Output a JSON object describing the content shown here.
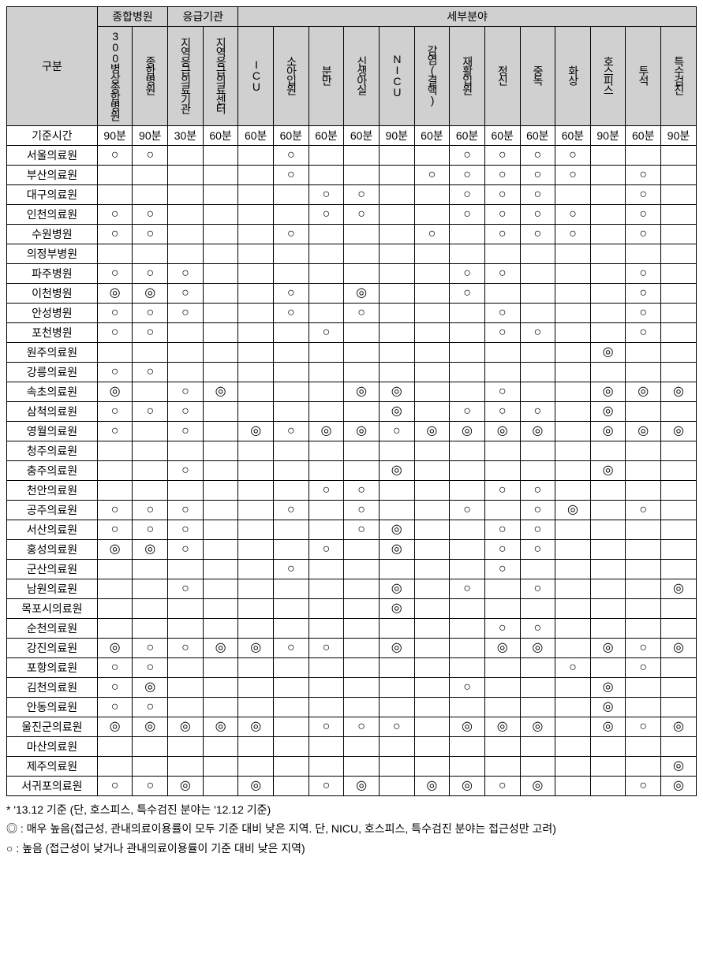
{
  "marks": {
    "high": "○",
    "veryhigh": "◎"
  },
  "headers": {
    "gubun": "구분",
    "group1": "종합병원",
    "group2": "응급기관",
    "group3": "세부분야",
    "c1": "300병상종합병원",
    "c2": "종합병원",
    "c3": "지역응급의료기관",
    "c4": "지역응급의료센터",
    "c5": "ICU",
    "c6": "소아입원",
    "c7": "분만",
    "c8": "신생아실",
    "c9": "NICU",
    "c10": "감염(결핵)",
    "c11": "재활입원",
    "c12": "정신",
    "c13": "중독",
    "c14": "화상",
    "c15": "호스피스",
    "c16": "투석",
    "c17": "특수검진",
    "baseTimeLabel": "기준시간",
    "baseTime": [
      "90분",
      "90분",
      "30분",
      "60분",
      "60분",
      "60분",
      "60분",
      "60분",
      "90분",
      "60분",
      "60분",
      "60분",
      "60분",
      "60분",
      "90분",
      "60분",
      "90분"
    ]
  },
  "rows": [
    {
      "n": "서울의료원",
      "v": [
        "h",
        "h",
        "",
        "",
        "",
        "h",
        "",
        "",
        "",
        "",
        "h",
        "h",
        "h",
        "h",
        "",
        "",
        ""
      ]
    },
    {
      "n": "부산의료원",
      "v": [
        "",
        "",
        "",
        "",
        "",
        "h",
        "",
        "",
        "",
        "h",
        "h",
        "h",
        "h",
        "h",
        "",
        "h",
        ""
      ]
    },
    {
      "n": "대구의료원",
      "v": [
        "",
        "",
        "",
        "",
        "",
        "",
        "h",
        "h",
        "",
        "",
        "h",
        "h",
        "h",
        "",
        "",
        "h",
        ""
      ]
    },
    {
      "n": "인천의료원",
      "v": [
        "h",
        "h",
        "",
        "",
        "",
        "",
        "h",
        "h",
        "",
        "",
        "h",
        "h",
        "h",
        "h",
        "",
        "h",
        ""
      ]
    },
    {
      "n": "수원병원",
      "v": [
        "h",
        "h",
        "",
        "",
        "",
        "h",
        "",
        "",
        "",
        "h",
        "",
        "h",
        "h",
        "h",
        "",
        "h",
        ""
      ]
    },
    {
      "n": "의정부병원",
      "v": [
        "",
        "",
        "",
        "",
        "",
        "",
        "",
        "",
        "",
        "",
        "",
        "",
        "",
        "",
        "",
        "",
        ""
      ]
    },
    {
      "n": "파주병원",
      "v": [
        "h",
        "h",
        "h",
        "",
        "",
        "",
        "",
        "",
        "",
        "",
        "h",
        "h",
        "",
        "",
        "",
        "h",
        ""
      ]
    },
    {
      "n": "이천병원",
      "v": [
        "vh",
        "vh",
        "h",
        "",
        "",
        "h",
        "",
        "vh",
        "",
        "",
        "h",
        "",
        "",
        "",
        "",
        "h",
        ""
      ]
    },
    {
      "n": "안성병원",
      "v": [
        "h",
        "h",
        "h",
        "",
        "",
        "h",
        "",
        "h",
        "",
        "",
        "",
        "h",
        "",
        "",
        "",
        "h",
        ""
      ]
    },
    {
      "n": "포천병원",
      "v": [
        "h",
        "h",
        "",
        "",
        "",
        "",
        "h",
        "",
        "",
        "",
        "",
        "h",
        "h",
        "",
        "",
        "h",
        ""
      ]
    },
    {
      "n": "원주의료원",
      "v": [
        "",
        "",
        "",
        "",
        "",
        "",
        "",
        "",
        "",
        "",
        "",
        "",
        "",
        "",
        "vh",
        "",
        ""
      ]
    },
    {
      "n": "강릉의료원",
      "v": [
        "h",
        "h",
        "",
        "",
        "",
        "",
        "",
        "",
        "",
        "",
        "",
        "",
        "",
        "",
        "",
        "",
        ""
      ]
    },
    {
      "n": "속초의료원",
      "v": [
        "vh",
        "",
        "h",
        "vh",
        "",
        "",
        "",
        "vh",
        "vh",
        "",
        "",
        "h",
        "",
        "",
        "vh",
        "vh",
        "vh"
      ]
    },
    {
      "n": "삼척의료원",
      "v": [
        "h",
        "h",
        "h",
        "",
        "",
        "",
        "",
        "",
        "vh",
        "",
        "h",
        "h",
        "h",
        "",
        "vh",
        "",
        ""
      ]
    },
    {
      "n": "영월의료원",
      "v": [
        "h",
        "",
        "h",
        "",
        "vh",
        "h",
        "vh",
        "vh",
        "h",
        "vh",
        "vh",
        "vh",
        "vh",
        "",
        "vh",
        "vh",
        "vh"
      ]
    },
    {
      "n": "청주의료원",
      "v": [
        "",
        "",
        "",
        "",
        "",
        "",
        "",
        "",
        "",
        "",
        "",
        "",
        "",
        "",
        "",
        "",
        ""
      ]
    },
    {
      "n": "충주의료원",
      "v": [
        "",
        "",
        "h",
        "",
        "",
        "",
        "",
        "",
        "vh",
        "",
        "",
        "",
        "",
        "",
        "vh",
        "",
        ""
      ]
    },
    {
      "n": "천안의료원",
      "v": [
        "",
        "",
        "",
        "",
        "",
        "",
        "h",
        "h",
        "",
        "",
        "",
        "h",
        "h",
        "",
        "",
        "",
        ""
      ]
    },
    {
      "n": "공주의료원",
      "v": [
        "h",
        "h",
        "h",
        "",
        "",
        "h",
        "",
        "h",
        "",
        "",
        "h",
        "",
        "h",
        "vh",
        "",
        "h",
        ""
      ]
    },
    {
      "n": "서산의료원",
      "v": [
        "h",
        "h",
        "h",
        "",
        "",
        "",
        "",
        "h",
        "vh",
        "",
        "",
        "h",
        "h",
        "",
        "",
        "",
        ""
      ]
    },
    {
      "n": "홍성의료원",
      "v": [
        "vh",
        "vh",
        "h",
        "",
        "",
        "",
        "h",
        "",
        "vh",
        "",
        "",
        "h",
        "h",
        "",
        "",
        "",
        ""
      ]
    },
    {
      "n": "군산의료원",
      "v": [
        "",
        "",
        "",
        "",
        "",
        "h",
        "",
        "",
        "",
        "",
        "",
        "h",
        "",
        "",
        "",
        "",
        ""
      ]
    },
    {
      "n": "남원의료원",
      "v": [
        "",
        "",
        "h",
        "",
        "",
        "",
        "",
        "",
        "vh",
        "",
        "h",
        "",
        "h",
        "",
        "",
        "",
        "vh"
      ]
    },
    {
      "n": "목포시의료원",
      "v": [
        "",
        "",
        "",
        "",
        "",
        "",
        "",
        "",
        "vh",
        "",
        "",
        "",
        "",
        "",
        "",
        "",
        ""
      ]
    },
    {
      "n": "순천의료원",
      "v": [
        "",
        "",
        "",
        "",
        "",
        "",
        "",
        "",
        "",
        "",
        "",
        "h",
        "h",
        "",
        "",
        "",
        ""
      ]
    },
    {
      "n": "강진의료원",
      "v": [
        "vh",
        "h",
        "h",
        "vh",
        "vh",
        "h",
        "h",
        "",
        "vh",
        "",
        "",
        "vh",
        "vh",
        "",
        "vh",
        "h",
        "vh"
      ]
    },
    {
      "n": "포항의료원",
      "v": [
        "h",
        "h",
        "",
        "",
        "",
        "",
        "",
        "",
        "",
        "",
        "",
        "",
        "",
        "h",
        "",
        "h",
        ""
      ]
    },
    {
      "n": "김천의료원",
      "v": [
        "h",
        "vh",
        "",
        "",
        "",
        "",
        "",
        "",
        "",
        "",
        "h",
        "",
        "",
        "",
        "vh",
        "",
        ""
      ]
    },
    {
      "n": "안동의료원",
      "v": [
        "h",
        "h",
        "",
        "",
        "",
        "",
        "",
        "",
        "",
        "",
        "",
        "",
        "",
        "",
        "vh",
        "",
        ""
      ]
    },
    {
      "n": "울진군의료원",
      "v": [
        "vh",
        "vh",
        "vh",
        "vh",
        "vh",
        "",
        "h",
        "h",
        "h",
        "",
        "vh",
        "vh",
        "vh",
        "",
        "vh",
        "h",
        "vh"
      ]
    },
    {
      "n": "마산의료원",
      "v": [
        "",
        "",
        "",
        "",
        "",
        "",
        "",
        "",
        "",
        "",
        "",
        "",
        "",
        "",
        "",
        "",
        ""
      ]
    },
    {
      "n": "제주의료원",
      "v": [
        "",
        "",
        "",
        "",
        "",
        "",
        "",
        "",
        "",
        "",
        "",
        "",
        "",
        "",
        "",
        "",
        "vh"
      ]
    },
    {
      "n": "서귀포의료원",
      "v": [
        "h",
        "h",
        "vh",
        "",
        "vh",
        "",
        "h",
        "vh",
        "",
        "vh",
        "vh",
        "h",
        "vh",
        "",
        "",
        "h",
        "vh"
      ]
    }
  ],
  "notes": {
    "l1": "* '13.12 기준 (단, 호스피스, 특수검진 분야는 '12.12 기준)",
    "l2": "◎ : 매우 높음(접근성, 관내의료이용률이 모두 기준 대비 낮은 지역. 단, NICU, 호스피스, 특수검진 분야는 접근성만 고려)",
    "l3": "○ : 높음 (접근성이 낮거나 관내의료이용률이 기준 대비 낮은 지역)"
  }
}
